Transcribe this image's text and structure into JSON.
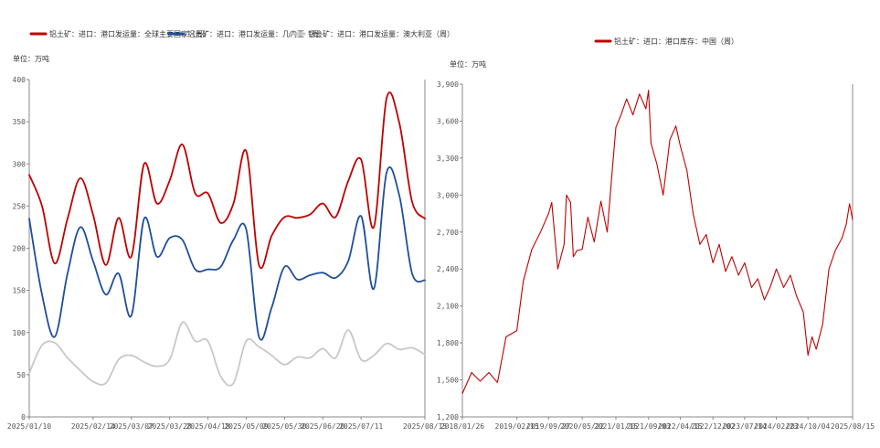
{
  "chart_data": [
    {
      "type": "line",
      "unit_label": "单位：万吨",
      "ylim": [
        0,
        400
      ],
      "yticks": [
        0,
        50,
        100,
        150,
        200,
        250,
        300,
        350,
        400
      ],
      "x_tick_labels": [
        "2025/01/10",
        "2025/02/14",
        "2025/03/07",
        "2025/03/28",
        "2025/04/18",
        "2025/05/09",
        "2025/05/30",
        "2025/06/20",
        "2025/07/11",
        "2025/08/15"
      ],
      "x_range": [
        "2025/01/10",
        "2025/08/15"
      ],
      "legend_position": "top-left",
      "grid": false,
      "series": [
        {
          "name": "铝土矿：进口：港口发运量：全球主要国家（周）",
          "color": "#c00000",
          "x": [
            "2025/01/10",
            "2025/01/17",
            "2025/01/24",
            "2025/01/31",
            "2025/02/07",
            "2025/02/14",
            "2025/02/21",
            "2025/02/28",
            "2025/03/07",
            "2025/03/14",
            "2025/03/21",
            "2025/03/28",
            "2025/04/04",
            "2025/04/11",
            "2025/04/18",
            "2025/04/25",
            "2025/05/02",
            "2025/05/09",
            "2025/05/16",
            "2025/05/23",
            "2025/05/30",
            "2025/06/06",
            "2025/06/13",
            "2025/06/20",
            "2025/06/27",
            "2025/07/04",
            "2025/07/11",
            "2025/07/18",
            "2025/07/25",
            "2025/08/01",
            "2025/08/08",
            "2025/08/15"
          ],
          "y": [
            287,
            250,
            182,
            235,
            283,
            240,
            180,
            236,
            190,
            300,
            253,
            280,
            323,
            265,
            265,
            230,
            253,
            315,
            180,
            215,
            237,
            236,
            240,
            253,
            237,
            280,
            305,
            225,
            378,
            348,
            255,
            235
          ]
        },
        {
          "name": "铝土矿：进口：港口发运量：几内亚（周）",
          "color": "#1f4e9c",
          "x": [
            "2025/01/10",
            "2025/01/17",
            "2025/01/24",
            "2025/01/31",
            "2025/02/07",
            "2025/02/14",
            "2025/02/21",
            "2025/02/28",
            "2025/03/07",
            "2025/03/14",
            "2025/03/21",
            "2025/03/28",
            "2025/04/04",
            "2025/04/11",
            "2025/04/18",
            "2025/04/25",
            "2025/05/02",
            "2025/05/09",
            "2025/05/16",
            "2025/05/23",
            "2025/05/30",
            "2025/06/06",
            "2025/06/13",
            "2025/06/20",
            "2025/06/27",
            "2025/07/04",
            "2025/07/11",
            "2025/07/18",
            "2025/07/25",
            "2025/08/01",
            "2025/08/08",
            "2025/08/15"
          ],
          "y": [
            235,
            145,
            95,
            170,
            225,
            185,
            145,
            170,
            120,
            235,
            190,
            212,
            210,
            175,
            175,
            178,
            210,
            222,
            95,
            130,
            178,
            163,
            168,
            171,
            165,
            185,
            238,
            152,
            290,
            262,
            170,
            162
          ]
        },
        {
          "name": "铝土矿：进口：港口发运量：澳大利亚（周）",
          "color": "#c8c8c8",
          "x": [
            "2025/01/10",
            "2025/01/17",
            "2025/01/24",
            "2025/01/31",
            "2025/02/07",
            "2025/02/14",
            "2025/02/21",
            "2025/02/28",
            "2025/03/07",
            "2025/03/14",
            "2025/03/21",
            "2025/03/28",
            "2025/04/04",
            "2025/04/11",
            "2025/04/18",
            "2025/04/25",
            "2025/05/02",
            "2025/05/09",
            "2025/05/16",
            "2025/05/23",
            "2025/05/30",
            "2025/06/06",
            "2025/06/13",
            "2025/06/20",
            "2025/06/27",
            "2025/07/04",
            "2025/07/11",
            "2025/07/18",
            "2025/07/25",
            "2025/08/01",
            "2025/08/08",
            "2025/08/15"
          ],
          "y": [
            52,
            85,
            88,
            70,
            55,
            42,
            40,
            68,
            73,
            65,
            60,
            68,
            112,
            90,
            90,
            48,
            40,
            90,
            83,
            73,
            62,
            71,
            70,
            81,
            70,
            103,
            68,
            73,
            87,
            80,
            82,
            74
          ]
        }
      ]
    },
    {
      "type": "line",
      "unit_label": "单位：万吨",
      "ylim": [
        1200,
        3900
      ],
      "yticks": [
        1200,
        1500,
        1800,
        2100,
        2400,
        2700,
        3000,
        3300,
        3600,
        3900
      ],
      "ytick_labels": [
        "1,200",
        "1,500",
        "1,800",
        "2,100",
        "2,400",
        "2,700",
        "3,000",
        "3,300",
        "3,600",
        "3,900"
      ],
      "x_tick_labels": [
        "2018/01/26",
        "2019/02/15",
        "2019/09/27",
        "2020/05/22",
        "2021/01/15",
        "2021/09/03",
        "2022/04/15",
        "2022/12/02",
        "2023/07/14",
        "2024/02/23",
        "2024/10/04",
        "2025/08/15"
      ],
      "x_range": [
        "2018/01/26",
        "2025/08/15"
      ],
      "legend_position": "top-center",
      "grid": false,
      "series": [
        {
          "name": "铝土矿：进口：港口库存：中国（周）",
          "color": "#c00000",
          "x": [
            "2018/01/26",
            "2018/04/01",
            "2018/06/01",
            "2018/08/01",
            "2018/10/01",
            "2018/12/01",
            "2019/02/15",
            "2019/04/01",
            "2019/06/01",
            "2019/08/01",
            "2019/09/27",
            "2019/10/20",
            "2019/12/01",
            "2020/01/15",
            "2020/02/01",
            "2020/03/01",
            "2020/03/20",
            "2020/04/15",
            "2020/05/22",
            "2020/07/01",
            "2020/08/15",
            "2020/10/01",
            "2020/11/15",
            "2020/12/20",
            "2021/01/15",
            "2021/02/20",
            "2021/04/01",
            "2021/05/15",
            "2021/07/01",
            "2021/08/15",
            "2021/09/03",
            "2021/09/20",
            "2021/11/01",
            "2021/12/15",
            "2022/02/01",
            "2022/03/15",
            "2022/04/15",
            "2022/06/01",
            "2022/07/15",
            "2022/09/01",
            "2022/10/15",
            "2022/12/02",
            "2023/01/15",
            "2023/03/01",
            "2023/04/15",
            "2023/06/01",
            "2023/07/14",
            "2023/09/01",
            "2023/10/15",
            "2023/12/01",
            "2024/01/10",
            "2024/02/23",
            "2024/04/15",
            "2024/06/01",
            "2024/07/15",
            "2024/09/01",
            "2024/10/04",
            "2024/11/01",
            "2024/12/01",
            "2025/01/15",
            "2025/03/01",
            "2025/04/15",
            "2025/06/01",
            "2025/07/01",
            "2025/07/25",
            "2025/08/15"
          ],
          "y": [
            1390,
            1560,
            1490,
            1560,
            1480,
            1850,
            1900,
            2300,
            2560,
            2700,
            2850,
            2940,
            2400,
            2600,
            3000,
            2940,
            2500,
            2550,
            2560,
            2820,
            2620,
            2950,
            2700,
            3200,
            3550,
            3650,
            3780,
            3650,
            3820,
            3700,
            3850,
            3420,
            3250,
            3000,
            3450,
            3560,
            3400,
            3200,
            2850,
            2600,
            2680,
            2450,
            2600,
            2380,
            2500,
            2350,
            2450,
            2250,
            2320,
            2150,
            2250,
            2400,
            2250,
            2350,
            2180,
            2050,
            1700,
            1850,
            1750,
            1950,
            2400,
            2550,
            2650,
            2760,
            2930,
            2800
          ]
        }
      ]
    }
  ]
}
